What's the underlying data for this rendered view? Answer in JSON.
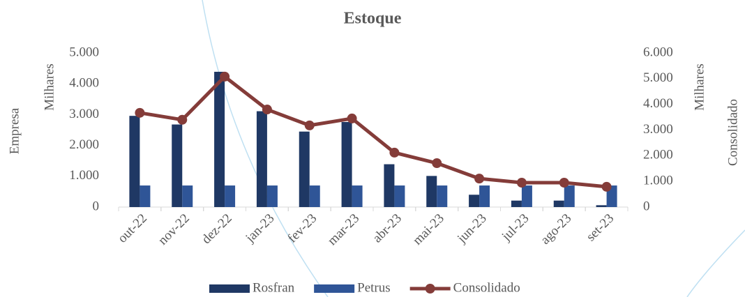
{
  "chart_data": {
    "type": "bar",
    "title": "Estoque",
    "y_label": "Empresa",
    "y_unit": "Milhares",
    "y2_label": "Consolidado",
    "y2_unit": "Milhares",
    "categories": [
      "out-22",
      "nov-22",
      "dez-22",
      "jan-23",
      "fev-23",
      "mar-23",
      "abr-23",
      "mai-23",
      "jun-23",
      "jul-23",
      "ago-23",
      "set-23"
    ],
    "series": [
      {
        "name": "Rosfran",
        "type": "bar",
        "color": "#1f3864",
        "values": [
          2960,
          2680,
          4390,
          3110,
          2450,
          2760,
          1390,
          1010,
          400,
          210,
          210,
          60
        ]
      },
      {
        "name": "Petrus",
        "type": "bar",
        "color": "#2f5597",
        "values": [
          700,
          700,
          700,
          700,
          700,
          700,
          700,
          700,
          700,
          700,
          700,
          700
        ]
      },
      {
        "name": "Consolidado",
        "type": "line",
        "axis": "y2",
        "color": "#843c39",
        "values": [
          3670,
          3400,
          5080,
          3800,
          3180,
          3450,
          2120,
          1710,
          1110,
          950,
          950,
          790
        ]
      }
    ],
    "ylim": [
      0,
      5000
    ],
    "yticks": [
      0,
      {
        "value": 1000,
        "label": "1.000"
      },
      {
        "value": 2000,
        "label": "2.000"
      },
      {
        "value": 3000,
        "label": "3.000"
      },
      {
        "value": 4000,
        "label": "4.000"
      },
      {
        "value": 5000,
        "label": "5.000"
      }
    ],
    "y2lim": [
      0,
      6000
    ],
    "y2ticks": [
      0,
      {
        "value": 1000,
        "label": "1.000"
      },
      {
        "value": 2000,
        "label": "2.000"
      },
      {
        "value": 3000,
        "label": "3.000"
      },
      {
        "value": 4000,
        "label": "4.000"
      },
      {
        "value": 5000,
        "label": "5.000"
      },
      {
        "value": 6000,
        "label": "6.000"
      }
    ],
    "legend": "bottom"
  }
}
